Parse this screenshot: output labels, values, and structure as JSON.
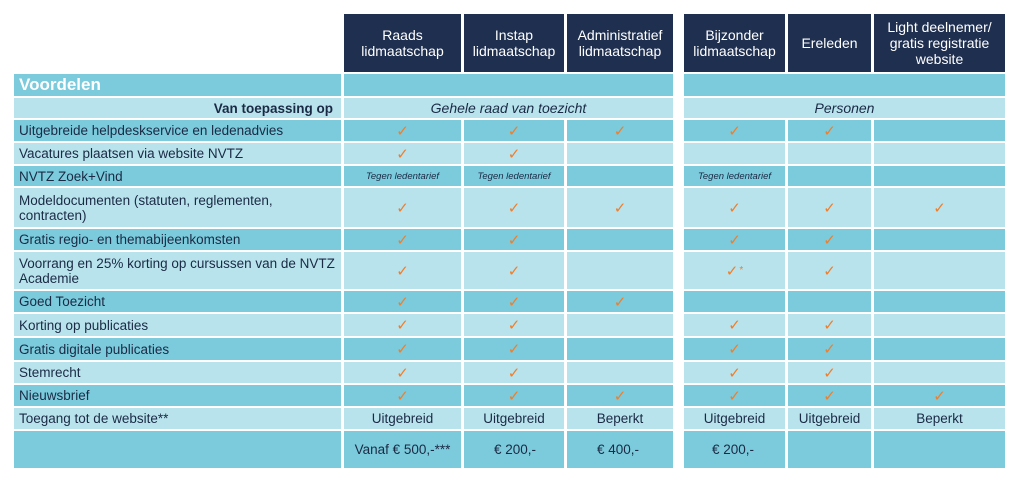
{
  "columns": [
    {
      "key": "raads",
      "label": "Raads lidmaatschap"
    },
    {
      "key": "instap",
      "label": "Instap lidmaatschap"
    },
    {
      "key": "admin",
      "label": "Administratief lidmaatschap"
    },
    {
      "key": "bijzonder",
      "label": "Bijzonder lidmaatschap"
    },
    {
      "key": "ereleden",
      "label": "Ereleden"
    },
    {
      "key": "light",
      "label": "Light deelnemer/ gratis registratie website"
    }
  ],
  "section_title": "Voordelen",
  "applies_label": "Van toepassing op",
  "applies_group1": "Gehele raad van toezicht",
  "applies_group2": "Personen",
  "check_symbol": "✓",
  "tariff_text": "Tegen ledentarief",
  "rows": [
    {
      "label": "Uitgebreide helpdeskservice en ledenadvies",
      "cells": [
        "check",
        "check",
        "check",
        "check",
        "check",
        ""
      ]
    },
    {
      "label": "Vacatures plaatsen via website NVTZ",
      "cells": [
        "check",
        "check",
        "",
        "",
        "",
        ""
      ]
    },
    {
      "label": "NVTZ Zoek+Vind",
      "cells": [
        "tariff",
        "tariff",
        "",
        "tariff",
        "",
        ""
      ]
    },
    {
      "label": "Modeldocumenten (statuten, reglementen, contracten)",
      "cells": [
        "check",
        "check",
        "check",
        "check",
        "check",
        "check"
      ]
    },
    {
      "label": "Gratis regio- en themabijeenkomsten",
      "cells": [
        "check",
        "check",
        "",
        "check",
        "check",
        ""
      ]
    },
    {
      "label": "Voorrang en 25% korting op cursussen van de NVTZ Academie",
      "cells": [
        "check",
        "check",
        "",
        "check*",
        "check",
        ""
      ]
    },
    {
      "label": "Goed Toezicht",
      "cells": [
        "check",
        "check",
        "check",
        "",
        "",
        ""
      ]
    },
    {
      "label": "Korting op publicaties",
      "cells": [
        "check",
        "check",
        "",
        "check",
        "check",
        ""
      ]
    },
    {
      "label": "Gratis digitale publicaties",
      "cells": [
        "check",
        "check",
        "",
        "check",
        "check",
        ""
      ]
    },
    {
      "label": "Stemrecht",
      "cells": [
        "check",
        "check",
        "",
        "check",
        "check",
        ""
      ]
    },
    {
      "label": "Nieuwsbrief",
      "cells": [
        "check",
        "check",
        "check",
        "check",
        "check",
        "check"
      ]
    }
  ],
  "access_row": {
    "label": "Toegang tot de website**",
    "cells": [
      "Uitgebreid",
      "Uitgebreid",
      "Beperkt",
      "Uitgebreid",
      "Uitgebreid",
      "Beperkt"
    ]
  },
  "price_row": {
    "cells": [
      "Vanaf € 500,-***",
      "€ 200,-",
      "€ 400,-",
      "€ 200,-",
      "",
      ""
    ]
  },
  "colors": {
    "header": "#1f2f4f",
    "band_dark": "#7ccbdd",
    "band_light": "#b9e3ec",
    "check": "#f07e2a"
  }
}
